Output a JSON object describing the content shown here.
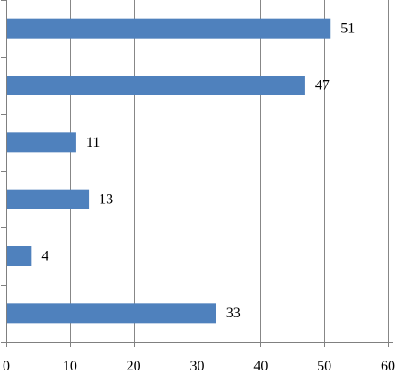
{
  "chart_data": {
    "type": "bar",
    "orientation": "horizontal",
    "title": "",
    "xlabel": "",
    "ylabel": "",
    "categories": [
      "",
      "",
      "",
      "",
      "",
      ""
    ],
    "values": [
      51,
      47,
      11,
      13,
      4,
      33
    ],
    "xlim": [
      0,
      60
    ],
    "xticks": [
      0,
      10,
      20,
      30,
      40,
      50,
      60
    ],
    "grid": true,
    "legend": "none",
    "data_labels": true,
    "bar_color": "#4f81bd",
    "grid_color": "#878787",
    "axis_color": "#808080"
  }
}
